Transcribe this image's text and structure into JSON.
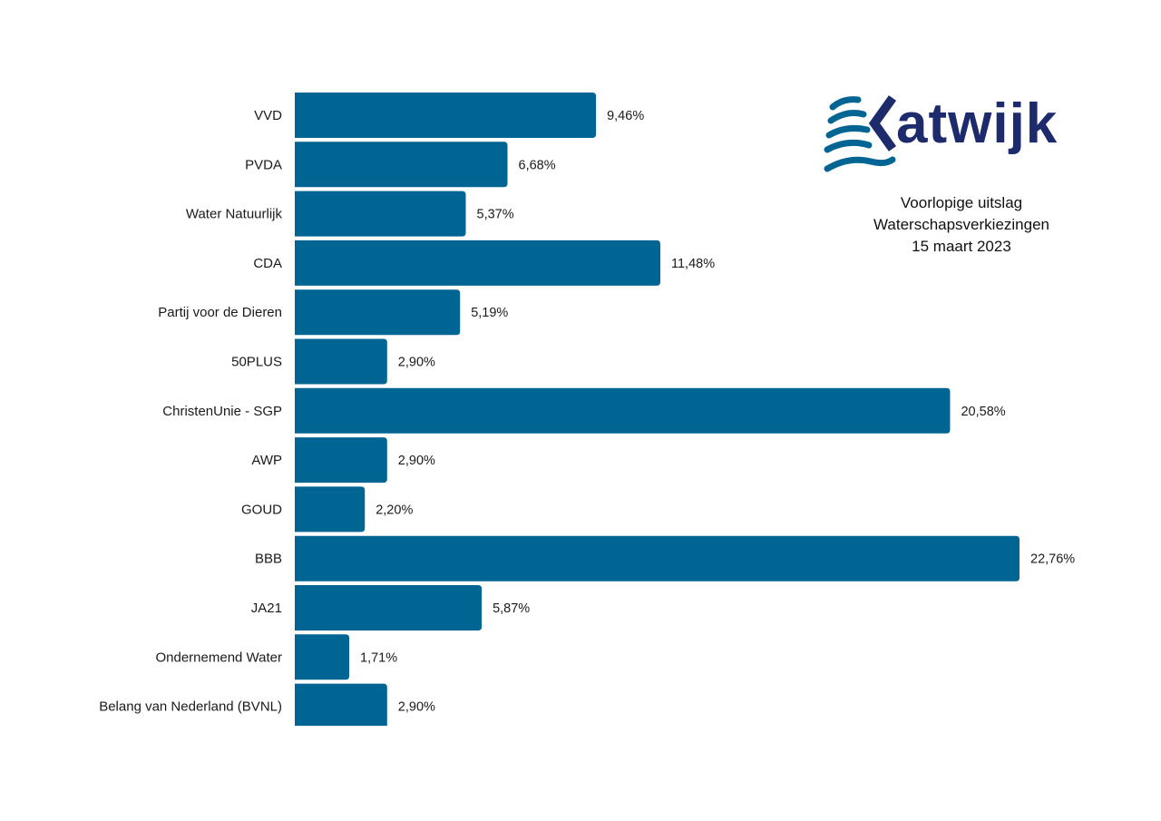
{
  "logo": {
    "text": "Katwijk",
    "wordmark_after_icon": "atwijk",
    "primary_color": "#1d2b6c",
    "wave_color": "#006593"
  },
  "subtitle": {
    "line1": "Voorlopige uitslag",
    "line2": "Waterschapsverkiezingen",
    "line3": "15 maart 2023"
  },
  "chart_data": {
    "type": "bar",
    "orientation": "horizontal",
    "title": "Voorlopige uitslag Waterschapsverkiezingen 15 maart 2023",
    "xlabel": "",
    "ylabel": "",
    "unit": "%",
    "xlim": [
      0,
      22.76
    ],
    "grid": false,
    "bar_color": "#006593",
    "categories": [
      "VVD",
      "PVDA",
      "Water Natuurlijk",
      "CDA",
      "Partij voor de Dieren",
      "50PLUS",
      "ChristenUnie - SGP",
      "AWP",
      "GOUD",
      "BBB",
      "JA21",
      "Ondernemend Water",
      "Belang van Nederland (BVNL)"
    ],
    "values": [
      9.46,
      6.68,
      5.37,
      11.48,
      5.19,
      2.9,
      20.58,
      2.9,
      2.2,
      22.76,
      5.87,
      1.71,
      2.9
    ],
    "value_labels": [
      "9,46%",
      "6,68%",
      "5,37%",
      "11,48%",
      "5,19%",
      "2,90%",
      "20,58%",
      "2,90%",
      "2,20%",
      "22,76%",
      "5,87%",
      "1,71%",
      "2,90%"
    ]
  }
}
